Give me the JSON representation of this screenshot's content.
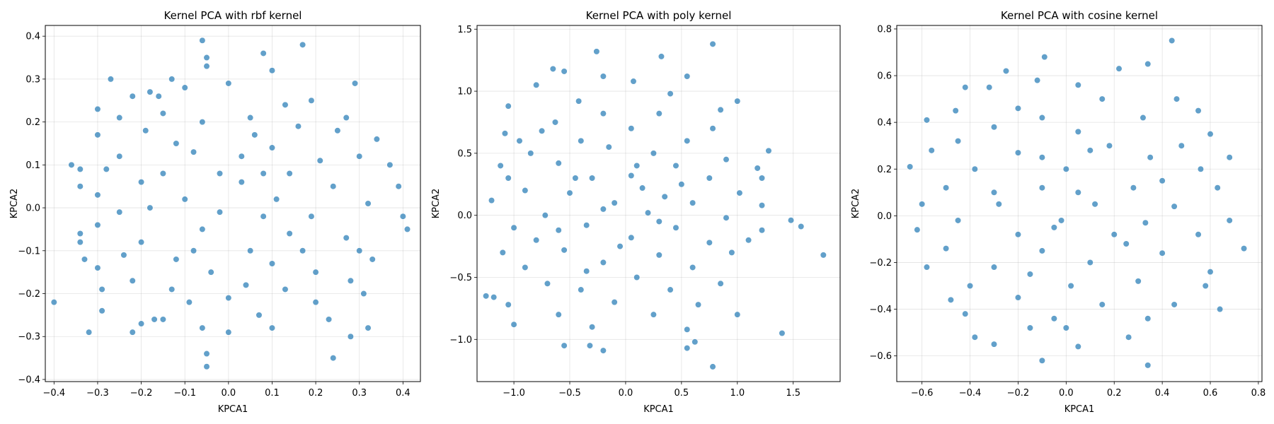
{
  "figure": {
    "background": "#ffffff",
    "point_color": "#1f77b4"
  },
  "chart_data": [
    {
      "type": "scatter",
      "title": "Kernel PCA with rbf kernel",
      "xlabel": "KPCA1",
      "ylabel": "KPCA2",
      "xlim": [
        -0.42,
        0.44
      ],
      "ylim": [
        -0.405,
        0.425
      ],
      "xticks": [
        -0.4,
        -0.3,
        -0.2,
        -0.1,
        0.0,
        0.1,
        0.2,
        0.3,
        0.4
      ],
      "xtick_labels": [
        "−0.4",
        "−0.3",
        "−0.2",
        "−0.1",
        "0.0",
        "0.1",
        "0.2",
        "0.3",
        "0.4"
      ],
      "yticks": [
        -0.4,
        -0.3,
        -0.2,
        -0.1,
        0.0,
        0.1,
        0.2,
        0.3,
        0.4
      ],
      "ytick_labels": [
        "−0.4",
        "−0.3",
        "−0.2",
        "−0.1",
        "0.0",
        "0.1",
        "0.2",
        "0.3",
        "0.4"
      ],
      "grid": true,
      "points": [
        [
          -0.06,
          0.39
        ],
        [
          0.08,
          0.36
        ],
        [
          0.17,
          0.38
        ],
        [
          -0.05,
          0.35
        ],
        [
          -0.05,
          0.33
        ],
        [
          0.1,
          0.32
        ],
        [
          -0.27,
          0.3
        ],
        [
          -0.13,
          0.3
        ],
        [
          0.0,
          0.29
        ],
        [
          0.29,
          0.29
        ],
        [
          -0.1,
          0.28
        ],
        [
          -0.18,
          0.27
        ],
        [
          -0.3,
          0.23
        ],
        [
          -0.22,
          0.26
        ],
        [
          -0.16,
          0.26
        ],
        [
          0.19,
          0.25
        ],
        [
          0.13,
          0.24
        ],
        [
          0.27,
          0.21
        ],
        [
          -0.25,
          0.21
        ],
        [
          -0.06,
          0.2
        ],
        [
          0.16,
          0.19
        ],
        [
          0.34,
          0.16
        ],
        [
          -0.3,
          0.17
        ],
        [
          -0.19,
          0.18
        ],
        [
          0.06,
          0.17
        ],
        [
          0.25,
          0.18
        ],
        [
          -0.12,
          0.15
        ],
        [
          0.1,
          0.14
        ],
        [
          0.3,
          0.12
        ],
        [
          -0.25,
          0.12
        ],
        [
          0.03,
          0.12
        ],
        [
          0.21,
          0.11
        ],
        [
          -0.36,
          0.1
        ],
        [
          -0.34,
          0.09
        ],
        [
          -0.28,
          0.09
        ],
        [
          -0.15,
          0.08
        ],
        [
          0.14,
          0.08
        ],
        [
          0.37,
          0.1
        ],
        [
          -0.2,
          0.06
        ],
        [
          0.03,
          0.06
        ],
        [
          0.24,
          0.05
        ],
        [
          -0.34,
          0.05
        ],
        [
          0.39,
          0.05
        ],
        [
          -0.3,
          0.03
        ],
        [
          -0.1,
          0.02
        ],
        [
          0.11,
          0.02
        ],
        [
          0.32,
          0.01
        ],
        [
          -0.25,
          -0.01
        ],
        [
          -0.02,
          -0.01
        ],
        [
          0.19,
          -0.02
        ],
        [
          0.4,
          -0.02
        ],
        [
          0.41,
          -0.05
        ],
        [
          -0.34,
          -0.06
        ],
        [
          -0.3,
          -0.04
        ],
        [
          -0.06,
          -0.05
        ],
        [
          0.14,
          -0.06
        ],
        [
          0.27,
          -0.07
        ],
        [
          -0.34,
          -0.08
        ],
        [
          -0.2,
          -0.08
        ],
        [
          0.05,
          -0.1
        ],
        [
          0.3,
          -0.1
        ],
        [
          -0.33,
          -0.12
        ],
        [
          -0.24,
          -0.11
        ],
        [
          -0.12,
          -0.12
        ],
        [
          0.1,
          -0.13
        ],
        [
          0.33,
          -0.12
        ],
        [
          -0.3,
          -0.14
        ],
        [
          -0.04,
          -0.15
        ],
        [
          0.2,
          -0.15
        ],
        [
          0.28,
          -0.17
        ],
        [
          -0.22,
          -0.17
        ],
        [
          0.04,
          -0.18
        ],
        [
          -0.29,
          -0.19
        ],
        [
          -0.13,
          -0.19
        ],
        [
          0.13,
          -0.19
        ],
        [
          0.31,
          -0.2
        ],
        [
          -0.4,
          -0.22
        ],
        [
          -0.09,
          -0.22
        ],
        [
          0.0,
          -0.21
        ],
        [
          0.2,
          -0.22
        ],
        [
          -0.29,
          -0.24
        ],
        [
          -0.15,
          -0.26
        ],
        [
          0.07,
          -0.25
        ],
        [
          0.23,
          -0.26
        ],
        [
          -0.2,
          -0.27
        ],
        [
          -0.06,
          -0.28
        ],
        [
          0.1,
          -0.28
        ],
        [
          -0.32,
          -0.29
        ],
        [
          -0.22,
          -0.29
        ],
        [
          0.0,
          -0.29
        ],
        [
          0.32,
          -0.28
        ],
        [
          -0.17,
          -0.26
        ],
        [
          0.28,
          -0.3
        ],
        [
          -0.05,
          -0.34
        ],
        [
          0.24,
          -0.35
        ],
        [
          -0.05,
          -0.37
        ],
        [
          -0.15,
          0.22
        ],
        [
          0.05,
          0.21
        ],
        [
          -0.08,
          0.13
        ],
        [
          0.08,
          0.08
        ],
        [
          -0.02,
          0.08
        ],
        [
          -0.18,
          0.0
        ],
        [
          0.08,
          -0.02
        ],
        [
          -0.08,
          -0.1
        ],
        [
          0.17,
          -0.1
        ]
      ]
    },
    {
      "type": "scatter",
      "title": "Kernel PCA with poly kernel",
      "xlabel": "KPCA1",
      "ylabel": "KPCA2",
      "xlim": [
        -1.33,
        1.92
      ],
      "ylim": [
        -1.34,
        1.53
      ],
      "xticks": [
        -1.0,
        -0.5,
        0.0,
        0.5,
        1.0,
        1.5
      ],
      "xtick_labels": [
        "−1.0",
        "−0.5",
        "0.0",
        "0.5",
        "1.0",
        "1.5"
      ],
      "yticks": [
        -1.0,
        -0.5,
        0.0,
        0.5,
        1.0,
        1.5
      ],
      "ytick_labels": [
        "−1.0",
        "−0.5",
        "0.0",
        "0.5",
        "1.0",
        "1.5"
      ],
      "grid": true,
      "points": [
        [
          0.78,
          1.38
        ],
        [
          -0.26,
          1.32
        ],
        [
          0.32,
          1.28
        ],
        [
          -0.65,
          1.18
        ],
        [
          -0.55,
          1.16
        ],
        [
          -0.2,
          1.12
        ],
        [
          0.55,
          1.12
        ],
        [
          -0.8,
          1.05
        ],
        [
          0.07,
          1.08
        ],
        [
          0.4,
          0.98
        ],
        [
          -1.05,
          0.88
        ],
        [
          -0.42,
          0.92
        ],
        [
          0.85,
          0.85
        ],
        [
          1.0,
          0.92
        ],
        [
          -0.63,
          0.75
        ],
        [
          -0.2,
          0.82
        ],
        [
          0.3,
          0.82
        ],
        [
          -0.95,
          0.6
        ],
        [
          -0.75,
          0.68
        ],
        [
          0.05,
          0.7
        ],
        [
          0.78,
          0.7
        ],
        [
          -1.08,
          0.66
        ],
        [
          -0.4,
          0.6
        ],
        [
          0.55,
          0.6
        ],
        [
          1.28,
          0.52
        ],
        [
          -0.85,
          0.5
        ],
        [
          -0.15,
          0.55
        ],
        [
          0.25,
          0.5
        ],
        [
          0.9,
          0.45
        ],
        [
          -1.12,
          0.4
        ],
        [
          -0.6,
          0.42
        ],
        [
          0.45,
          0.4
        ],
        [
          1.18,
          0.38
        ],
        [
          -1.05,
          0.3
        ],
        [
          -0.3,
          0.3
        ],
        [
          0.05,
          0.32
        ],
        [
          0.75,
          0.3
        ],
        [
          1.22,
          0.3
        ],
        [
          -0.9,
          0.2
        ],
        [
          -0.5,
          0.18
        ],
        [
          0.35,
          0.15
        ],
        [
          1.02,
          0.18
        ],
        [
          -1.2,
          0.12
        ],
        [
          -0.1,
          0.1
        ],
        [
          0.6,
          0.1
        ],
        [
          1.22,
          0.08
        ],
        [
          -0.72,
          0.0
        ],
        [
          0.2,
          0.02
        ],
        [
          0.9,
          -0.02
        ],
        [
          1.48,
          -0.04
        ],
        [
          1.57,
          -0.09
        ],
        [
          -1.0,
          -0.1
        ],
        [
          -0.35,
          -0.08
        ],
        [
          0.45,
          -0.1
        ],
        [
          1.22,
          -0.12
        ],
        [
          -0.8,
          -0.2
        ],
        [
          0.05,
          -0.18
        ],
        [
          0.75,
          -0.22
        ],
        [
          1.1,
          -0.2
        ],
        [
          1.77,
          -0.32
        ],
        [
          -1.1,
          -0.3
        ],
        [
          -0.55,
          -0.28
        ],
        [
          0.3,
          -0.32
        ],
        [
          0.95,
          -0.3
        ],
        [
          -0.9,
          -0.42
        ],
        [
          -0.2,
          -0.38
        ],
        [
          0.6,
          -0.42
        ],
        [
          -1.25,
          -0.65
        ],
        [
          -1.18,
          -0.66
        ],
        [
          -0.7,
          -0.55
        ],
        [
          0.1,
          -0.5
        ],
        [
          0.85,
          -0.55
        ],
        [
          -0.4,
          -0.6
        ],
        [
          0.4,
          -0.6
        ],
        [
          -1.05,
          -0.72
        ],
        [
          -0.1,
          -0.7
        ],
        [
          0.65,
          -0.72
        ],
        [
          -0.6,
          -0.8
        ],
        [
          0.25,
          -0.8
        ],
        [
          1.0,
          -0.8
        ],
        [
          -1.0,
          -0.88
        ],
        [
          -0.3,
          -0.9
        ],
        [
          0.55,
          -0.92
        ],
        [
          1.4,
          -0.95
        ],
        [
          0.62,
          -1.02
        ],
        [
          -0.55,
          -1.05
        ],
        [
          -0.2,
          -1.09
        ],
        [
          -0.32,
          -1.05
        ],
        [
          0.55,
          -1.07
        ],
        [
          0.78,
          -1.22
        ],
        [
          -0.45,
          0.3
        ],
        [
          0.1,
          0.4
        ],
        [
          -0.2,
          0.05
        ],
        [
          0.3,
          -0.05
        ],
        [
          -0.05,
          -0.25
        ],
        [
          -0.6,
          -0.12
        ],
        [
          0.15,
          0.22
        ],
        [
          -0.35,
          -0.45
        ],
        [
          0.5,
          0.25
        ]
      ]
    },
    {
      "type": "scatter",
      "title": "Kernel PCA with cosine kernel",
      "xlabel": "KPCA1",
      "ylabel": "KPCA2",
      "xlim": [
        -0.705,
        0.815
      ],
      "ylim": [
        -0.71,
        0.815
      ],
      "xticks": [
        -0.6,
        -0.4,
        -0.2,
        0.0,
        0.2,
        0.4,
        0.6,
        0.8
      ],
      "xtick_labels": [
        "−0.6",
        "−0.4",
        "−0.2",
        "0.0",
        "0.2",
        "0.4",
        "0.6",
        "0.8"
      ],
      "yticks": [
        -0.6,
        -0.4,
        -0.2,
        0.0,
        0.2,
        0.4,
        0.6,
        0.8
      ],
      "ytick_labels": [
        "−0.6",
        "−0.4",
        "−0.2",
        "0.0",
        "0.2",
        "0.4",
        "0.6",
        "0.8"
      ],
      "grid": true,
      "points": [
        [
          0.44,
          0.75
        ],
        [
          -0.09,
          0.68
        ],
        [
          0.22,
          0.63
        ],
        [
          0.34,
          0.65
        ],
        [
          -0.25,
          0.62
        ],
        [
          -0.12,
          0.58
        ],
        [
          0.05,
          0.56
        ],
        [
          -0.42,
          0.55
        ],
        [
          -0.32,
          0.55
        ],
        [
          0.15,
          0.5
        ],
        [
          0.46,
          0.5
        ],
        [
          -0.2,
          0.46
        ],
        [
          0.55,
          0.45
        ],
        [
          -0.46,
          0.45
        ],
        [
          -0.1,
          0.42
        ],
        [
          0.32,
          0.42
        ],
        [
          -0.58,
          0.41
        ],
        [
          -0.3,
          0.38
        ],
        [
          0.05,
          0.36
        ],
        [
          0.6,
          0.35
        ],
        [
          -0.45,
          0.32
        ],
        [
          0.18,
          0.3
        ],
        [
          0.48,
          0.3
        ],
        [
          -0.56,
          0.28
        ],
        [
          -0.2,
          0.27
        ],
        [
          0.35,
          0.25
        ],
        [
          0.68,
          0.25
        ],
        [
          -0.65,
          0.21
        ],
        [
          -0.38,
          0.2
        ],
        [
          0.0,
          0.2
        ],
        [
          0.56,
          0.2
        ],
        [
          -0.5,
          0.12
        ],
        [
          -0.1,
          0.12
        ],
        [
          0.28,
          0.12
        ],
        [
          0.63,
          0.12
        ],
        [
          -0.6,
          0.05
        ],
        [
          -0.28,
          0.05
        ],
        [
          0.12,
          0.05
        ],
        [
          0.45,
          0.04
        ],
        [
          -0.45,
          -0.02
        ],
        [
          -0.02,
          -0.02
        ],
        [
          0.33,
          -0.03
        ],
        [
          0.68,
          -0.02
        ],
        [
          -0.62,
          -0.06
        ],
        [
          -0.2,
          -0.08
        ],
        [
          0.2,
          -0.08
        ],
        [
          0.55,
          -0.08
        ],
        [
          0.74,
          -0.14
        ],
        [
          -0.5,
          -0.14
        ],
        [
          -0.1,
          -0.15
        ],
        [
          0.4,
          -0.16
        ],
        [
          -0.58,
          -0.22
        ],
        [
          -0.3,
          -0.22
        ],
        [
          0.1,
          -0.2
        ],
        [
          0.6,
          -0.24
        ],
        [
          -0.4,
          -0.3
        ],
        [
          0.02,
          -0.3
        ],
        [
          0.3,
          -0.28
        ],
        [
          0.58,
          -0.3
        ],
        [
          -0.48,
          -0.36
        ],
        [
          -0.2,
          -0.35
        ],
        [
          0.15,
          -0.38
        ],
        [
          0.45,
          -0.38
        ],
        [
          -0.42,
          -0.42
        ],
        [
          -0.05,
          -0.44
        ],
        [
          0.34,
          -0.44
        ],
        [
          0.64,
          -0.4
        ],
        [
          -0.38,
          -0.52
        ],
        [
          -0.15,
          -0.48
        ],
        [
          0.0,
          -0.48
        ],
        [
          0.26,
          -0.52
        ],
        [
          -0.3,
          -0.55
        ],
        [
          0.05,
          -0.56
        ],
        [
          -0.1,
          -0.62
        ],
        [
          0.34,
          -0.64
        ],
        [
          -0.1,
          0.25
        ],
        [
          0.1,
          0.28
        ],
        [
          -0.3,
          0.1
        ],
        [
          0.25,
          -0.12
        ],
        [
          -0.15,
          -0.25
        ],
        [
          0.05,
          0.1
        ],
        [
          -0.05,
          -0.05
        ],
        [
          0.4,
          0.15
        ]
      ]
    }
  ]
}
